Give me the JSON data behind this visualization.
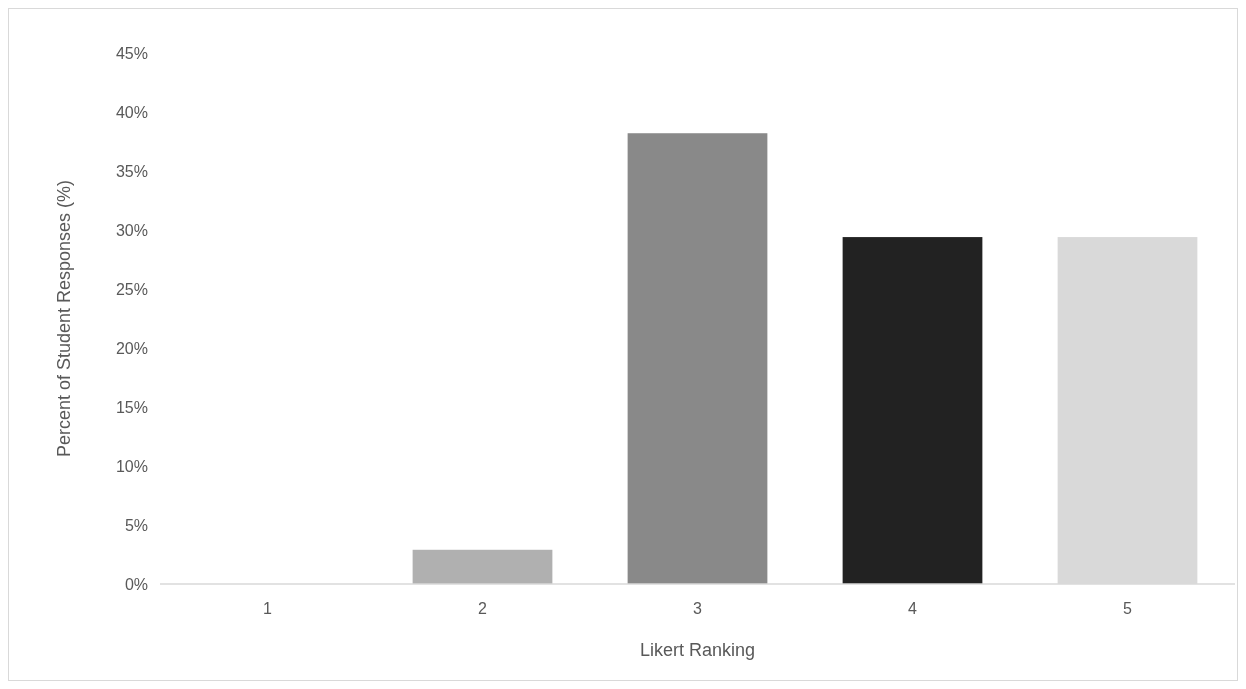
{
  "chart_data": {
    "type": "bar",
    "xlabel": "Likert Ranking",
    "ylabel": "Percent of Student Responses (%)",
    "categories": [
      "1",
      "2",
      "3",
      "4",
      "5"
    ],
    "values": [
      0,
      2.9,
      38.2,
      29.4,
      29.4
    ],
    "colors": [
      "#5a5a5a",
      "#b0b0b0",
      "#898989",
      "#222222",
      "#d9d9d9"
    ],
    "ylim": [
      0,
      45
    ],
    "yticks": [
      {
        "value": 0,
        "label": "0%"
      },
      {
        "value": 5,
        "label": "5%"
      },
      {
        "value": 10,
        "label": "10%"
      },
      {
        "value": 15,
        "label": "15%"
      },
      {
        "value": 20,
        "label": "20%"
      },
      {
        "value": 25,
        "label": "25%"
      },
      {
        "value": 30,
        "label": "30%"
      },
      {
        "value": 35,
        "label": "35%"
      },
      {
        "value": 40,
        "label": "40%"
      },
      {
        "value": 45,
        "label": "45%"
      }
    ],
    "grid": false
  }
}
